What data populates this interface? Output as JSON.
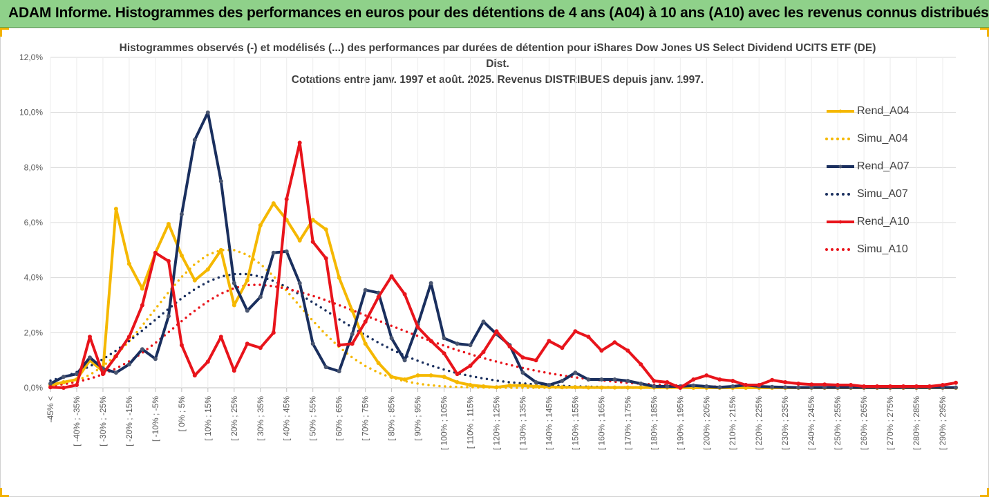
{
  "banner": {
    "title": "ADAM Informe. Histogrammes des performances en euros pour des détentions de 4 ans (A04) à 10 ans (A10) avec les revenus connus distribués"
  },
  "chart_data": {
    "type": "line",
    "title_lines": [
      "Histogrammes observés (-) et modélisés (...) des performances par durées de détention pour iShares Dow Jones US Select Dividend UCITS ETF (DE)",
      "Dist.",
      "Cotations entre janv. 1997 et août. 2025. Revenus DISTRIBUES depuis janv. 1997."
    ],
    "ylim": [
      0,
      12
    ],
    "y_ticks": [
      "0,0%",
      "2,0%",
      "4,0%",
      "6,0%",
      "8,0%",
      "10,0%",
      "12,0%"
    ],
    "grid": true,
    "legend_position": "right",
    "x_labels": [
      "-45% <",
      "[ -40% ; -35%",
      "[ -30% ; -25%",
      "[ -20% ; -15%",
      "[ -10% ; -5%",
      "[ 0% ; 5%",
      "[ 10% ; 15%",
      "[ 20% ; 25%",
      "[ 30% ; 35%",
      "[ 40% ; 45%",
      "[ 50% ; 55%",
      "[ 60% ; 65%",
      "[ 70% ; 75%",
      "[ 80% ; 85%",
      "[ 90% ; 95%",
      "[ 100% ; 105%",
      "[ 110% ; 115%",
      "[ 120% ; 125%",
      "[ 130% ; 135%",
      "[ 140% ; 145%",
      "[ 150% ; 155%",
      "[ 160% ; 165%",
      "[ 170% ; 175%",
      "[ 180% ; 185%",
      "[ 190% ; 195%",
      "[ 200% ; 205%",
      "[ 210% ; 215%",
      "[ 220% ; 225%",
      "[ 230% ; 235%",
      "[ 240% ; 245%",
      "[ 250% ; 255%",
      "[ 260% ; 265%",
      "[ 270% ; 275%",
      "[ 280% ; 285%",
      "[ 290% ; 295%"
    ],
    "series": [
      {
        "name": "Rend_A04",
        "color": "#f5b800",
        "style": "solid",
        "markers": true,
        "values": [
          0.1,
          0.2,
          0.3,
          1.0,
          0.6,
          6.5,
          4.5,
          3.6,
          4.9,
          5.95,
          4.8,
          3.9,
          4.3,
          5.0,
          3.0,
          3.9,
          5.9,
          6.7,
          6.1,
          5.35,
          6.1,
          5.75,
          4.0,
          2.8,
          1.6,
          0.9,
          0.4,
          0.3,
          0.45,
          0.45,
          0.4,
          0.2,
          0.1,
          0.05,
          0.02,
          0.08,
          0.08,
          0.05,
          0.03,
          0.02,
          0.02,
          0.01,
          0.01,
          0.01,
          0.01,
          0.01,
          0.01,
          0.01,
          0.01,
          0.0,
          0.0,
          0.0,
          0.0,
          0.0,
          0.0,
          0.0,
          0.0,
          0.0,
          0.0,
          0.0,
          0.0,
          0.0,
          0.0,
          0.0,
          0.0,
          0.0,
          0.0,
          0.0,
          0.0,
          0.0
        ]
      },
      {
        "name": "Simu_A04",
        "color": "#f5b800",
        "style": "dotted",
        "markers": false,
        "values": [
          0.06,
          0.13,
          0.26,
          0.47,
          0.78,
          1.19,
          1.69,
          2.26,
          2.87,
          3.47,
          4.03,
          4.49,
          4.83,
          5.0,
          5.0,
          4.83,
          4.5,
          4.05,
          3.52,
          2.97,
          2.43,
          1.93,
          1.48,
          1.1,
          0.79,
          0.55,
          0.37,
          0.24,
          0.15,
          0.09,
          0.05,
          0.03,
          0.02,
          0.01,
          0.01,
          0.0,
          0.0,
          0.0,
          0.0,
          0.0,
          0.0,
          0.0,
          0.0,
          0.0,
          0.0,
          0.0,
          0.0,
          0.0,
          0.0,
          0.0,
          0.0,
          0.0,
          0.0,
          0.0,
          0.0,
          0.0,
          0.0,
          0.0,
          0.0,
          0.0,
          0.0,
          0.0,
          0.0,
          0.0,
          0.0,
          0.0,
          0.0,
          0.0,
          0.0,
          0.0
        ]
      },
      {
        "name": "Rend_A07",
        "color": "#1a2f5e",
        "style": "solid",
        "markers": true,
        "values": [
          0.15,
          0.4,
          0.5,
          1.1,
          0.7,
          0.55,
          0.85,
          1.4,
          1.05,
          2.6,
          6.3,
          9.0,
          10.0,
          7.5,
          3.8,
          2.8,
          3.3,
          4.9,
          4.95,
          3.8,
          1.6,
          0.75,
          0.6,
          1.95,
          3.55,
          3.45,
          1.8,
          1.0,
          2.3,
          3.8,
          1.8,
          1.6,
          1.55,
          2.4,
          1.95,
          1.55,
          0.55,
          0.2,
          0.1,
          0.25,
          0.55,
          0.3,
          0.3,
          0.3,
          0.25,
          0.15,
          0.05,
          0.05,
          0.05,
          0.08,
          0.05,
          0.02,
          0.05,
          0.1,
          0.05,
          0.03,
          0.02,
          0.01,
          0.01,
          0.01,
          0.01,
          0.01,
          0.01,
          0.01,
          0.01,
          0.01,
          0.01,
          0.01,
          0.01,
          0.01
        ]
      },
      {
        "name": "Simu_A07",
        "color": "#1a2f5e",
        "style": "dotted",
        "markers": false,
        "values": [
          0.26,
          0.39,
          0.57,
          0.78,
          1.04,
          1.35,
          1.7,
          2.08,
          2.47,
          2.87,
          3.25,
          3.58,
          3.85,
          4.04,
          4.13,
          4.13,
          4.04,
          3.88,
          3.66,
          3.39,
          3.1,
          2.8,
          2.49,
          2.19,
          1.91,
          1.64,
          1.39,
          1.17,
          0.98,
          0.81,
          0.66,
          0.53,
          0.43,
          0.34,
          0.26,
          0.2,
          0.16,
          0.12,
          0.09,
          0.07,
          0.05,
          0.04,
          0.03,
          0.02,
          0.02,
          0.01,
          0.01,
          0.01,
          0.01,
          0.0,
          0.0,
          0.0,
          0.0,
          0.0,
          0.0,
          0.0,
          0.0,
          0.0,
          0.0,
          0.0,
          0.0,
          0.0,
          0.0,
          0.0,
          0.0,
          0.0,
          0.0,
          0.0,
          0.0,
          0.0
        ]
      },
      {
        "name": "Rend_A10",
        "color": "#e8141b",
        "style": "solid",
        "markers": true,
        "values": [
          0.02,
          0.0,
          0.1,
          1.85,
          0.5,
          1.15,
          1.85,
          3.0,
          4.9,
          4.6,
          1.55,
          0.45,
          0.95,
          1.85,
          0.62,
          1.6,
          1.45,
          2.0,
          6.85,
          8.9,
          5.3,
          4.7,
          1.55,
          1.6,
          2.4,
          3.3,
          4.05,
          3.4,
          2.2,
          1.7,
          1.25,
          0.5,
          0.8,
          1.3,
          2.05,
          1.5,
          1.1,
          1.0,
          1.7,
          1.45,
          2.05,
          1.85,
          1.35,
          1.65,
          1.35,
          0.85,
          0.25,
          0.2,
          0.0,
          0.3,
          0.45,
          0.3,
          0.25,
          0.1,
          0.1,
          0.28,
          0.2,
          0.15,
          0.12,
          0.12,
          0.1,
          0.1,
          0.05,
          0.05,
          0.05,
          0.05,
          0.05,
          0.05,
          0.1,
          0.18
        ]
      },
      {
        "name": "Simu_A10",
        "color": "#e8141b",
        "style": "dotted",
        "markers": false,
        "values": [
          0.08,
          0.13,
          0.21,
          0.33,
          0.49,
          0.7,
          0.96,
          1.27,
          1.63,
          2.02,
          2.42,
          2.8,
          3.14,
          3.42,
          3.62,
          3.73,
          3.74,
          3.69,
          3.6,
          3.48,
          3.34,
          3.18,
          3.0,
          2.82,
          2.63,
          2.44,
          2.25,
          2.06,
          1.88,
          1.7,
          1.53,
          1.37,
          1.22,
          1.08,
          0.95,
          0.83,
          0.72,
          0.62,
          0.53,
          0.45,
          0.38,
          0.32,
          0.27,
          0.22,
          0.18,
          0.15,
          0.12,
          0.1,
          0.08,
          0.06,
          0.05,
          0.04,
          0.03,
          0.03,
          0.02,
          0.02,
          0.02,
          0.01,
          0.01,
          0.01,
          0.01,
          0.01,
          0.01,
          0.01,
          0.0,
          0.0,
          0.0,
          0.0,
          0.0,
          0.0
        ]
      }
    ]
  }
}
